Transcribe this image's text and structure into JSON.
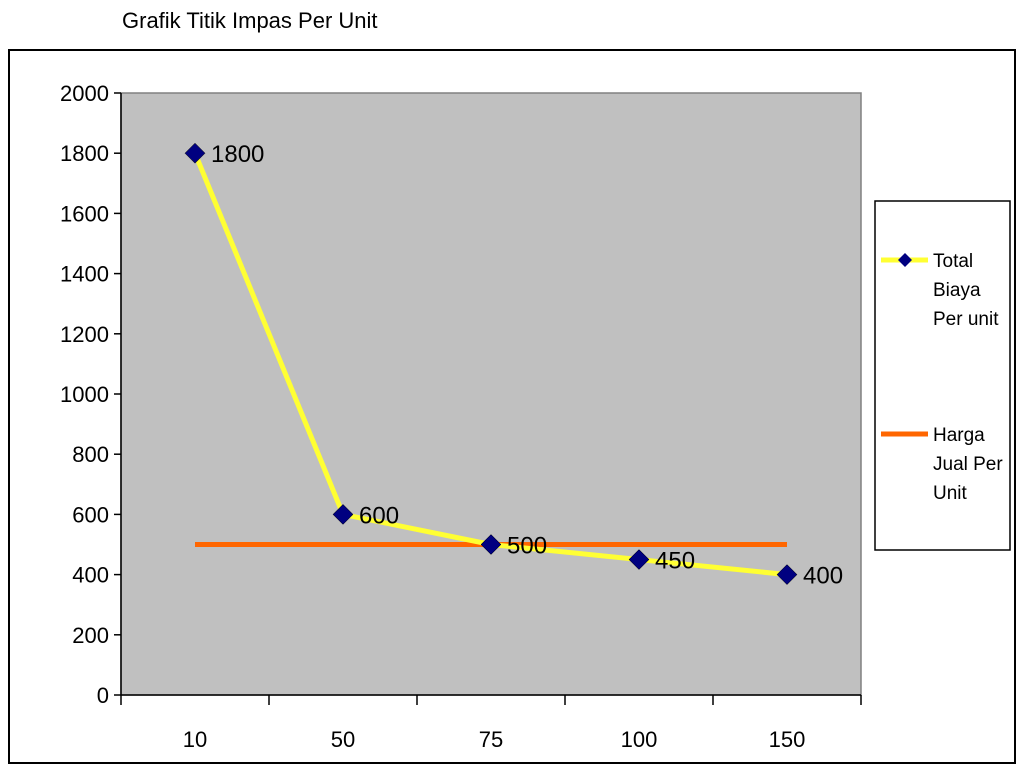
{
  "chart_data": {
    "type": "line",
    "title": "Grafik Titik Impas Per Unit",
    "xlabel": "",
    "ylabel": "",
    "categories": [
      "10",
      "50",
      "75",
      "100",
      "150"
    ],
    "ylim": [
      0,
      2000
    ],
    "yticks": [
      0,
      200,
      400,
      600,
      800,
      1000,
      1200,
      1400,
      1600,
      1800,
      2000
    ],
    "grid": false,
    "legend_position": "right",
    "plot_background": "#c0c0c0",
    "series": [
      {
        "name_lines": [
          "Total",
          "Biaya",
          "Per unit"
        ],
        "values": [
          1800,
          600,
          500,
          450,
          400
        ],
        "data_labels": [
          "1800",
          "600",
          "500",
          "450",
          "400"
        ],
        "line_color": "#ffff33",
        "marker": "diamond",
        "marker_color": "#000080"
      },
      {
        "name_lines": [
          "Harga",
          "Jual Per",
          "Unit"
        ],
        "values": [
          500,
          500,
          500,
          500,
          500
        ],
        "line_color": "#ff6600",
        "marker": "none"
      }
    ]
  }
}
